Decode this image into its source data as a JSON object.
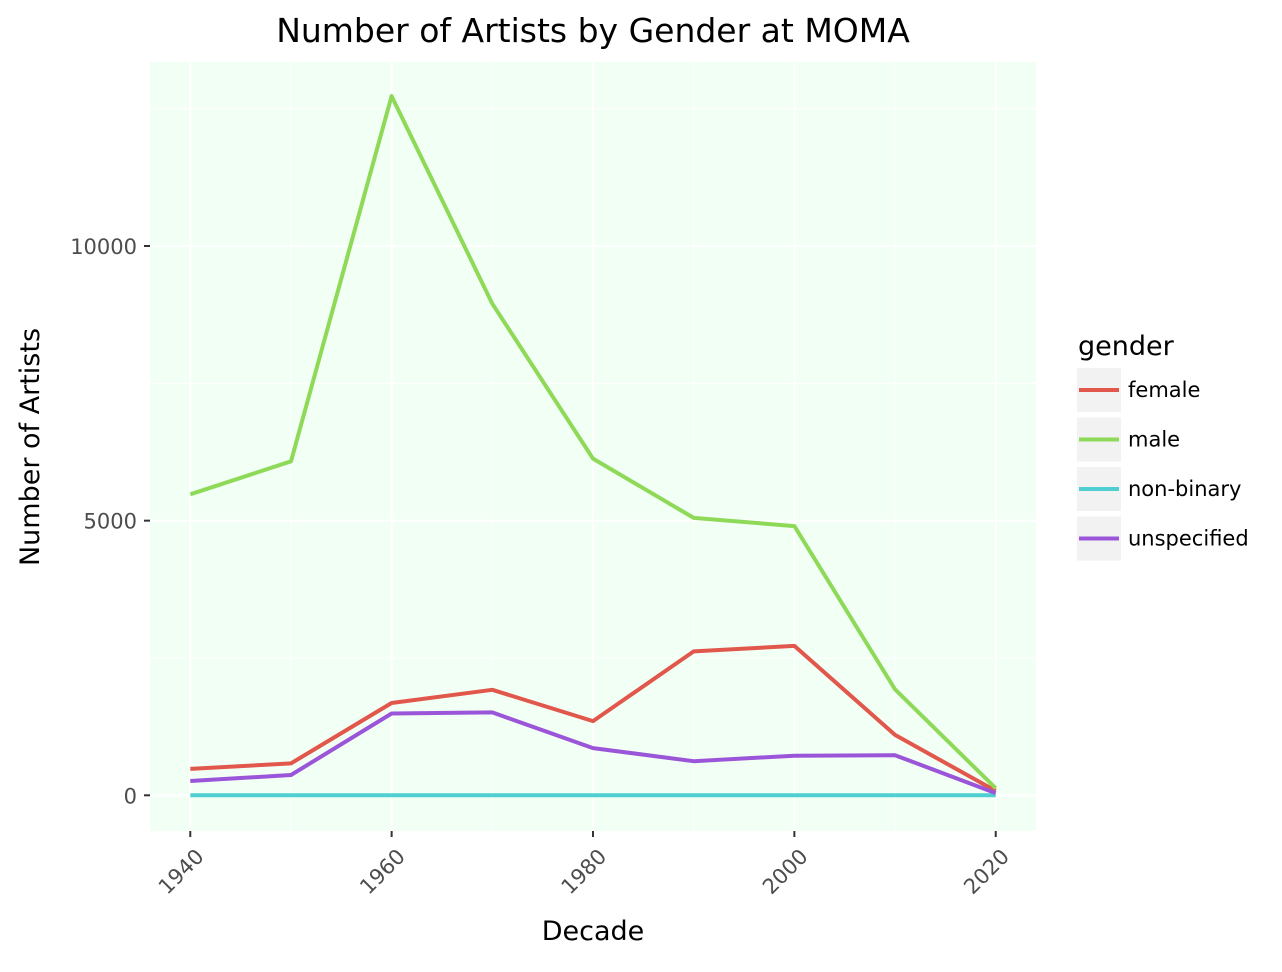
{
  "chart_data": {
    "type": "line",
    "title": "Number of Artists by Gender at MOMA",
    "xlabel": "Decade",
    "ylabel": "Number of Artists",
    "x": [
      1940,
      1950,
      1960,
      1970,
      1980,
      1990,
      2000,
      2010,
      2020
    ],
    "x_ticks": [
      "1940",
      "1960",
      "1980",
      "2000",
      "2020"
    ],
    "y_ticks": [
      "0",
      "5000",
      "10000"
    ],
    "xlim": [
      1936,
      2024
    ],
    "ylim": [
      -650,
      13350
    ],
    "panel_background": "#f2fff5",
    "grid": true,
    "legend_title": "gender",
    "legend_position": "right",
    "series": [
      {
        "name": "female",
        "color": "#e1574c",
        "values": [
          480,
          580,
          1680,
          1920,
          1350,
          2620,
          2720,
          1100,
          80
        ]
      },
      {
        "name": "male",
        "color": "#8fd959",
        "values": [
          5480,
          6080,
          12730,
          8950,
          6130,
          5050,
          4900,
          1930,
          130
        ]
      },
      {
        "name": "non-binary",
        "color": "#4fcfd2",
        "values": [
          0,
          0,
          0,
          0,
          0,
          0,
          0,
          0,
          0
        ]
      },
      {
        "name": "unspecified",
        "color": "#9b55d8",
        "values": [
          260,
          370,
          1490,
          1510,
          860,
          620,
          720,
          730,
          40
        ]
      }
    ]
  }
}
